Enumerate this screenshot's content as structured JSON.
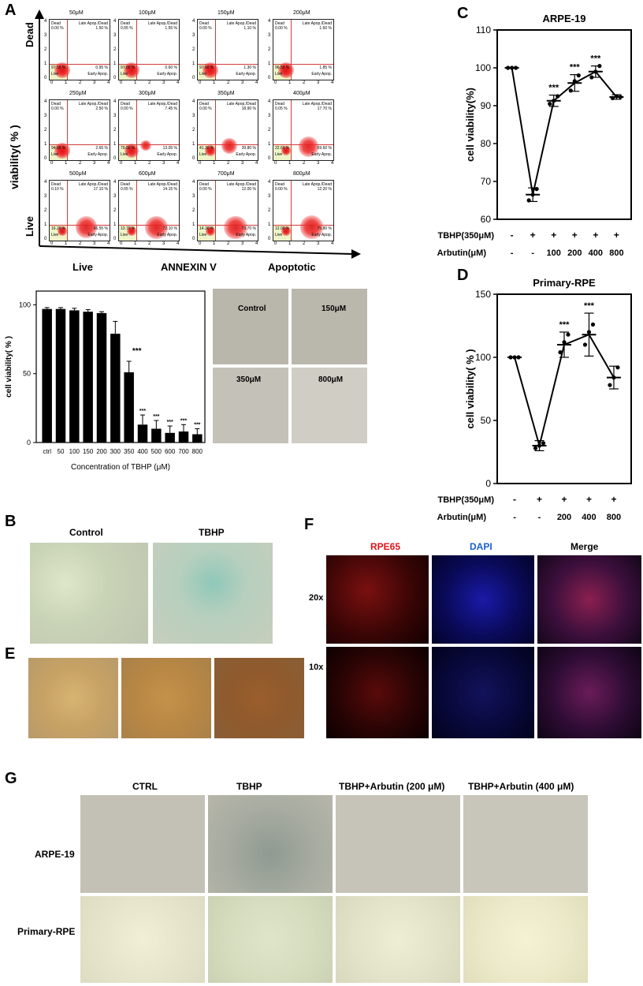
{
  "panels": {
    "a": "A",
    "b": "B",
    "c": "C",
    "d": "D",
    "e": "E",
    "f": "F",
    "g": "G"
  },
  "flow": {
    "y_label": "viability( % )",
    "dead": "Dead",
    "live_axis": "Live",
    "x_left": "Live",
    "x_mid": "ANNEXIN V",
    "x_right": "Apoptotic",
    "q_dead": "Dead",
    "q_late": "Late Apop./Dead",
    "q_live": "Live",
    "q_early": "Early Apop.",
    "tick_labels": [
      "0",
      "1",
      "2",
      "3",
      "4"
    ],
    "plots": [
      {
        "conc": "50μM",
        "dead": "0.00 %",
        "late": "1.50 %",
        "live": "97.55 %",
        "early": "0.95 %"
      },
      {
        "conc": "100μM",
        "dead": "0.05 %",
        "late": "1.55 %",
        "live": "97.80 %",
        "early": "0.60 %"
      },
      {
        "conc": "150μM",
        "dead": "0.00 %",
        "late": "1.10 %",
        "live": "97.60 %",
        "early": "1.30 %"
      },
      {
        "conc": "200μM",
        "dead": "0.00 %",
        "late": "1.60 %",
        "live": "96.55 %",
        "early": "1.85 %"
      },
      {
        "conc": "250μM",
        "dead": "0.00 %",
        "late": "2.50 %",
        "live": "94.85 %",
        "early": "2.65 %"
      },
      {
        "conc": "300μM",
        "dead": "0.00 %",
        "late": "7.45 %",
        "live": "79.50 %",
        "early": "13.05 %"
      },
      {
        "conc": "350μM",
        "dead": "0.00 %",
        "late": "18.90 %",
        "live": "41.30 %",
        "early": "39.80 %"
      },
      {
        "conc": "400μM",
        "dead": "0.05 %",
        "late": "17.70 %",
        "live": "22.65 %",
        "early": "59.60 %"
      },
      {
        "conc": "500μM",
        "dead": "0.10 %",
        "late": "17.10 %",
        "live": "16.20 %",
        "early": "66.55 %"
      },
      {
        "conc": "600μM",
        "dead": "0.05 %",
        "late": "14.15 %",
        "live": "13.70 %",
        "early": "72.10 %"
      },
      {
        "conc": "700μM",
        "dead": "0.00 %",
        "late": "12.00 %",
        "live": "14.30 %",
        "early": "73.70 %"
      },
      {
        "conc": "800μM",
        "dead": "0.00 %",
        "late": "12.20 %",
        "live": "12.00 %",
        "early": "75.80 %"
      }
    ]
  },
  "micro_a": {
    "control": "Control",
    "c150": "150μM",
    "c350": "350μM",
    "c800": "800μM"
  },
  "panel_b": {
    "control": "Control",
    "tbhp": "TBHP"
  },
  "panel_f": {
    "rpe65": "RPE65",
    "dapi": "DAPI",
    "merge": "Merge",
    "x20": "20x",
    "x10": "10x"
  },
  "panel_g": {
    "ctrl": "CTRL",
    "tbhp": "TBHP",
    "arb200": "TBHP+Arbutin (200 μM)",
    "arb400": "TBHP+Arbutin (400 μM)",
    "arpe": "ARPE-19",
    "prim": "Primary-RPE"
  },
  "chart_data": [
    {
      "type": "bar",
      "ylabel": "cell viability( % )",
      "xlabel": "Concentration of TBHP (μM)",
      "categories": [
        "ctrl",
        "50",
        "100",
        "150",
        "200",
        "300",
        "350",
        "400",
        "500",
        "600",
        "700",
        "800"
      ],
      "values": [
        97,
        97,
        96,
        95,
        94,
        79,
        51,
        13,
        10,
        7,
        8,
        6
      ],
      "errors": [
        1,
        1,
        1.5,
        1.5,
        1,
        9,
        8,
        7,
        6,
        5,
        5,
        4
      ],
      "significance": [
        "",
        "",
        "",
        "",
        "",
        "",
        "***",
        "***",
        "***",
        "***",
        "***",
        "***"
      ],
      "ylim": [
        0,
        110
      ],
      "yticks": [
        "0",
        "50",
        "100"
      ]
    },
    {
      "type": "line",
      "title": "ARPE-19",
      "ylabel": "cell viability(%)",
      "row1_label": "TBHP(350μM)",
      "row2_label": "Arbutin(μM)",
      "tbhp": [
        "-",
        "+",
        "+",
        "+",
        "+",
        "+"
      ],
      "arbutin": [
        "-",
        "-",
        "100",
        "200",
        "400",
        "800"
      ],
      "means": [
        100,
        66.5,
        91.3,
        96,
        99,
        92.3
      ],
      "errors": [
        0,
        1.8,
        1.5,
        2.2,
        1.5,
        0.6
      ],
      "points": [
        [
          100,
          100,
          100
        ],
        [
          65,
          66.5,
          68
        ],
        [
          90.5,
          91.3,
          92.5
        ],
        [
          94,
          96.5,
          98
        ],
        [
          97.5,
          99,
          100.5
        ],
        [
          92,
          92.5,
          92.3
        ]
      ],
      "significance": [
        "",
        "",
        "***",
        "***",
        "***",
        ""
      ],
      "ylim": [
        60,
        110
      ],
      "yticks": [
        "60",
        "70",
        "80",
        "90",
        "100",
        "110"
      ]
    },
    {
      "type": "line",
      "title": "Primary-RPE",
      "ylabel": "cell viability( % )",
      "row1_label": "TBHP(350μM)",
      "row2_label": "Arbutin(μM)",
      "tbhp": [
        "-",
        "+",
        "+",
        "+",
        "+"
      ],
      "arbutin": [
        "-",
        "-",
        "200",
        "400",
        "800"
      ],
      "means": [
        100,
        30,
        110,
        118,
        84
      ],
      "errors": [
        0,
        4,
        10,
        17,
        9
      ],
      "points": [
        [
          100,
          100,
          100
        ],
        [
          28,
          30,
          32
        ],
        [
          104,
          112,
          118
        ],
        [
          110,
          120,
          126
        ],
        [
          78,
          84,
          92
        ]
      ],
      "significance": [
        "",
        "",
        "***",
        "***",
        ""
      ],
      "ylim": [
        0,
        150
      ],
      "yticks": [
        "0",
        "50",
        "100",
        "150"
      ]
    }
  ]
}
